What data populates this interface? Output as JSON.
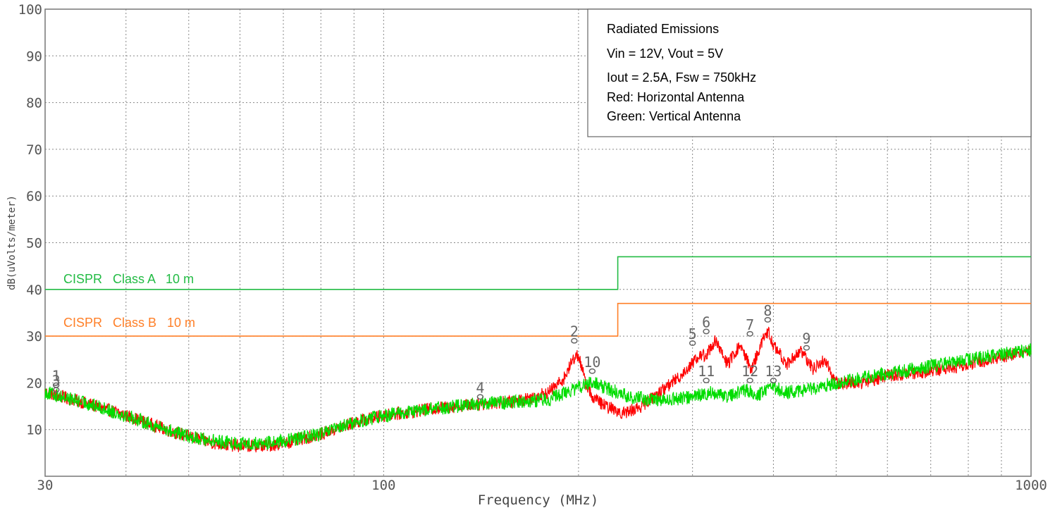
{
  "chart_data": {
    "type": "line",
    "title": "",
    "xlabel": "Frequency (MHz)",
    "ylabel": "dB(uVolts/meter)",
    "x_scale": "log",
    "xlim": [
      30,
      1000
    ],
    "ylim": [
      0,
      100
    ],
    "grid": true,
    "x_tick_labels": [
      {
        "value": 30,
        "label": "30"
      },
      {
        "value": 100,
        "label": "100"
      },
      {
        "value": 1000,
        "label": "1000"
      }
    ],
    "y_tick_labels": [
      {
        "value": 10,
        "label": "10"
      },
      {
        "value": 20,
        "label": "20"
      },
      {
        "value": 30,
        "label": "30"
      },
      {
        "value": 40,
        "label": "40"
      },
      {
        "value": 50,
        "label": "50"
      },
      {
        "value": 60,
        "label": "60"
      },
      {
        "value": 70,
        "label": "70"
      },
      {
        "value": 80,
        "label": "80"
      },
      {
        "value": 90,
        "label": "90"
      },
      {
        "value": 100,
        "label": "100"
      }
    ],
    "legend_box": {
      "placement": "top-right",
      "lines": [
        "Radiated Emissions",
        "Vin = 12V, Vout = 5V",
        "Iout = 2.5A, Fsw = 750kHz",
        "Red: Horizontal Antenna",
        "Green: Vertical Antenna"
      ]
    },
    "limits": [
      {
        "name": "CISPR   Class A   10 m",
        "color": "#22bb44",
        "points": [
          [
            30,
            40
          ],
          [
            230,
            40
          ],
          [
            230,
            47
          ],
          [
            1000,
            47
          ]
        ]
      },
      {
        "name": "CISPR   Class B   10 m",
        "color": "#ff7f27",
        "points": [
          [
            30,
            30
          ],
          [
            230,
            30
          ],
          [
            230,
            37
          ],
          [
            1000,
            37
          ]
        ]
      }
    ],
    "series": [
      {
        "color": "#ff0000",
        "noise": 1.4,
        "x": [
          30,
          35,
          40,
          45,
          50,
          55,
          60,
          65,
          70,
          80,
          90,
          100,
          120,
          140,
          160,
          180,
          190,
          197,
          200,
          205,
          210,
          220,
          235,
          250,
          270,
          290,
          305,
          315,
          325,
          340,
          355,
          370,
          385,
          393,
          400,
          420,
          440,
          460,
          480,
          500,
          550,
          600,
          700,
          800,
          1000
        ],
        "y": [
          18,
          15.5,
          13,
          10.5,
          8.5,
          7,
          6.5,
          6.5,
          7,
          9,
          11.5,
          13,
          14.5,
          15.5,
          16,
          18,
          21,
          25.5,
          26,
          20,
          17,
          15,
          13.5,
          15,
          18.5,
          22,
          25.5,
          26,
          29,
          24,
          28,
          23,
          29,
          31,
          28,
          24,
          27,
          23,
          25,
          20,
          20,
          21.5,
          22.5,
          24,
          27
        ]
      },
      {
        "color": "#00dd00",
        "noise": 1.5,
        "x": [
          30,
          35,
          40,
          45,
          50,
          55,
          60,
          65,
          70,
          80,
          90,
          100,
          120,
          140,
          160,
          180,
          200,
          210,
          220,
          240,
          260,
          280,
          300,
          320,
          340,
          360,
          380,
          400,
          420,
          450,
          500,
          550,
          600,
          700,
          800,
          1000
        ],
        "y": [
          18,
          15.5,
          13,
          10.5,
          8.5,
          7.5,
          7,
          7,
          7.5,
          9,
          11.5,
          13,
          14.5,
          15.5,
          16,
          16.5,
          19,
          20,
          19,
          17,
          16.5,
          16.5,
          17,
          18,
          17,
          18.5,
          17.5,
          19,
          18,
          18.5,
          20,
          21,
          22,
          23.5,
          25,
          27
        ]
      }
    ],
    "markers": [
      {
        "label": "1",
        "x": 31.2,
        "y": 19.5
      },
      {
        "label": "2",
        "x": 197,
        "y": 29
      },
      {
        "label": "3",
        "x": 31.2,
        "y": 18.5
      },
      {
        "label": "4",
        "x": 141,
        "y": 17
      },
      {
        "label": "5",
        "x": 300,
        "y": 28.5
      },
      {
        "label": "6",
        "x": 315,
        "y": 31
      },
      {
        "label": "7",
        "x": 368,
        "y": 30.5
      },
      {
        "label": "8",
        "x": 392,
        "y": 33.5
      },
      {
        "label": "9",
        "x": 450,
        "y": 27.5
      },
      {
        "label": "10",
        "x": 210,
        "y": 22.5
      },
      {
        "label": "11",
        "x": 315,
        "y": 20.5
      },
      {
        "label": "12",
        "x": 368,
        "y": 20.5
      },
      {
        "label": "13",
        "x": 400,
        "y": 20.5
      }
    ]
  }
}
